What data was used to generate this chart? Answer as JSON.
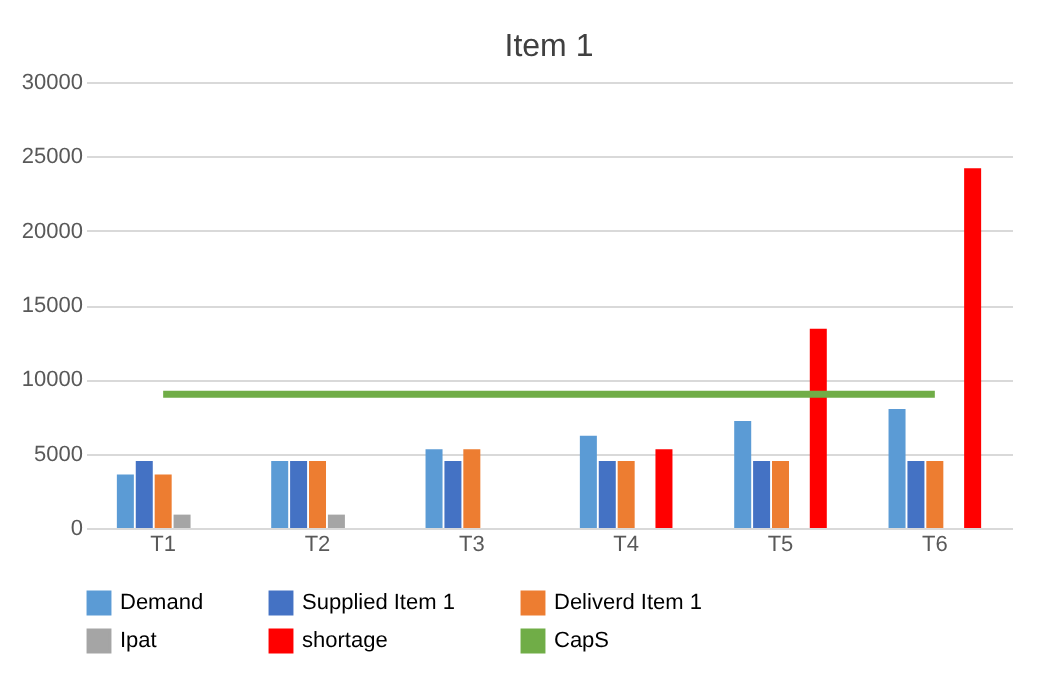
{
  "chart_data": {
    "type": "bar",
    "title": "Item 1",
    "categories": [
      "T1",
      "T2",
      "T3",
      "T4",
      "T5",
      "T6"
    ],
    "series": [
      {
        "name": "Demand",
        "color": "#5b9bd5",
        "values": [
          3600,
          4500,
          5300,
          6200,
          7200,
          8000
        ]
      },
      {
        "name": "Supplied Item 1",
        "color": "#4472c4",
        "values": [
          4500,
          4500,
          4500,
          4500,
          4500,
          4500
        ]
      },
      {
        "name": "Deliverd Item 1",
        "color": "#ed7d31",
        "values": [
          3600,
          4500,
          5300,
          4500,
          4500,
          4500
        ]
      },
      {
        "name": "Ipat",
        "color": "#a5a5a5",
        "values": [
          900,
          900,
          null,
          null,
          null,
          null
        ]
      },
      {
        "name": "shortage",
        "color": "#ff0000",
        "values": [
          null,
          null,
          null,
          5300,
          13400,
          24200
        ]
      },
      {
        "name": "CapS",
        "color": "#70ad47",
        "type": "line",
        "values": [
          9000,
          9000,
          9000,
          9000,
          9000,
          9000
        ]
      }
    ],
    "ylim": [
      0,
      30000
    ],
    "yticks": [
      0,
      5000,
      10000,
      15000,
      20000,
      25000,
      30000
    ],
    "grid": "y",
    "legend": "bottom",
    "marker": "none"
  }
}
